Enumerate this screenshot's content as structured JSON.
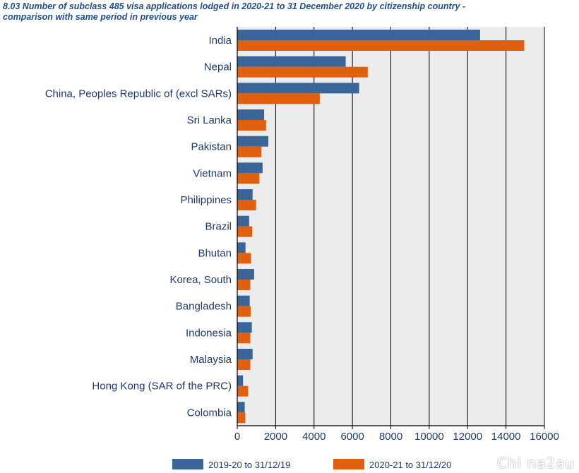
{
  "title_line1": "8.03 Number of subclass 485 visa applications lodged in 2020-21 to 31 December 2020 by citizenship country -",
  "title_line2": "comparison with same period in previous year",
  "watermark": "Chi na2au",
  "colors": {
    "series1": "#3a6598",
    "series2": "#e06010",
    "plot_bg": "#ececec",
    "text": "#1f3a6b",
    "title": "#1f4e8c"
  },
  "chart_data": {
    "type": "bar",
    "orientation": "horizontal",
    "title": "8.03 Number of subclass 485 visa applications lodged in 2020-21 to 31 December 2020 by citizenship country - comparison with same period in previous year",
    "xlabel": "",
    "ylabel": "",
    "xlim": [
      0,
      16000
    ],
    "xticks": [
      0,
      2000,
      4000,
      6000,
      8000,
      10000,
      12000,
      14000,
      16000
    ],
    "grid": "vertical",
    "legend_position": "bottom",
    "categories": [
      "India",
      "Nepal",
      "China, Peoples Republic of (excl SARs)",
      "Sri Lanka",
      "Pakistan",
      "Vietnam",
      "Philippines",
      "Brazil",
      "Bhutan",
      "Korea, South",
      "Bangladesh",
      "Indonesia",
      "Malaysia",
      "Hong Kong (SAR of the PRC)",
      "Colombia"
    ],
    "series": [
      {
        "name": "2019-20 to 31/12/19",
        "color": "#3a6598",
        "values": [
          12650,
          5650,
          6350,
          1400,
          1620,
          1320,
          800,
          620,
          430,
          880,
          650,
          760,
          800,
          300,
          390
        ]
      },
      {
        "name": "2020-21 to 31/12/20",
        "color": "#e06010",
        "values": [
          14950,
          6800,
          4300,
          1500,
          1260,
          1150,
          980,
          780,
          720,
          680,
          700,
          680,
          680,
          570,
          420
        ]
      }
    ]
  }
}
